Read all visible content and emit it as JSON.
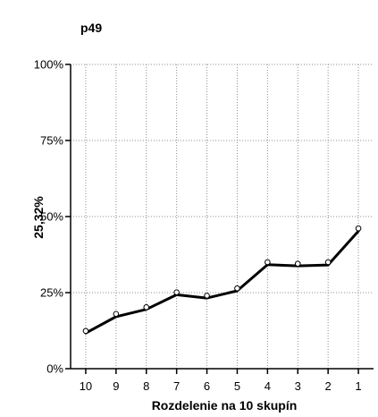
{
  "chart_data": {
    "type": "line",
    "title": "p49",
    "xlabel": "Rozdelenie na 10 skupín",
    "ylabel": "25,32%",
    "categories": [
      "10",
      "9",
      "8",
      "7",
      "6",
      "5",
      "4",
      "3",
      "2",
      "1"
    ],
    "ylim": [
      0,
      100
    ],
    "yticks": [
      0,
      25,
      50,
      75,
      100
    ],
    "ytick_labels": [
      "0%",
      "25%",
      "50%",
      "75%",
      "100%"
    ],
    "grid": true,
    "series": [
      {
        "values": [
          11.7,
          17.1,
          19.5,
          24.3,
          23.2,
          25.6,
          34.2,
          33.8,
          34.1,
          45.2
        ],
        "style": "line",
        "color": "#000000"
      },
      {
        "values": [
          12.4,
          18.0,
          20.2,
          25.1,
          24.0,
          26.4,
          35.0,
          34.5,
          35.0,
          46.1
        ],
        "style": "points",
        "color": "#000000"
      }
    ]
  }
}
